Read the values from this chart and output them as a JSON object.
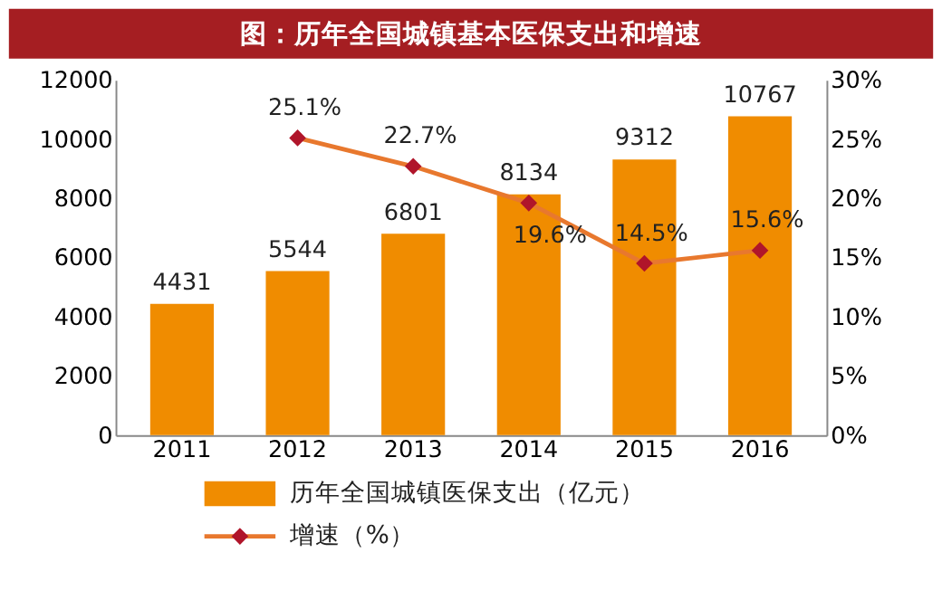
{
  "chart_data": {
    "type": "bar",
    "title": "图：历年全国城镇基本医保支出和增速",
    "categories": [
      "2011",
      "2012",
      "2013",
      "2014",
      "2015",
      "2016"
    ],
    "series": [
      {
        "name": "历年全国城镇医保支出（亿元）",
        "color": "#f08c00",
        "values": [
          4431,
          5544,
          6801,
          8134,
          9312,
          10767
        ],
        "value_labels": [
          "4431",
          "5544",
          "6801",
          "8134",
          "9312",
          "10767"
        ]
      },
      {
        "name": "增速（%）",
        "type": "line",
        "axis": "y2",
        "color": "#b0152a",
        "marker": "diamond",
        "values": [
          null,
          25.1,
          22.7,
          19.6,
          14.5,
          15.6
        ],
        "value_labels": [
          null,
          "25.1%",
          "22.7%",
          "19.6%",
          "14.5%",
          "15.6%"
        ]
      }
    ],
    "ylim": [
      0,
      12000
    ],
    "yticks": [
      0,
      2000,
      4000,
      6000,
      8000,
      10000,
      12000
    ],
    "y2lim": [
      0,
      30
    ],
    "y2ticks": [
      {
        "value": 0,
        "label": "0%"
      },
      {
        "value": 5,
        "label": "5%"
      },
      {
        "value": 10,
        "label": "10%"
      },
      {
        "value": 15,
        "label": "15%"
      },
      {
        "value": 20,
        "label": "20%"
      },
      {
        "value": 25,
        "label": "25%"
      },
      {
        "value": 30,
        "label": "30%"
      }
    ],
    "grid": false,
    "legend": "bottom"
  }
}
